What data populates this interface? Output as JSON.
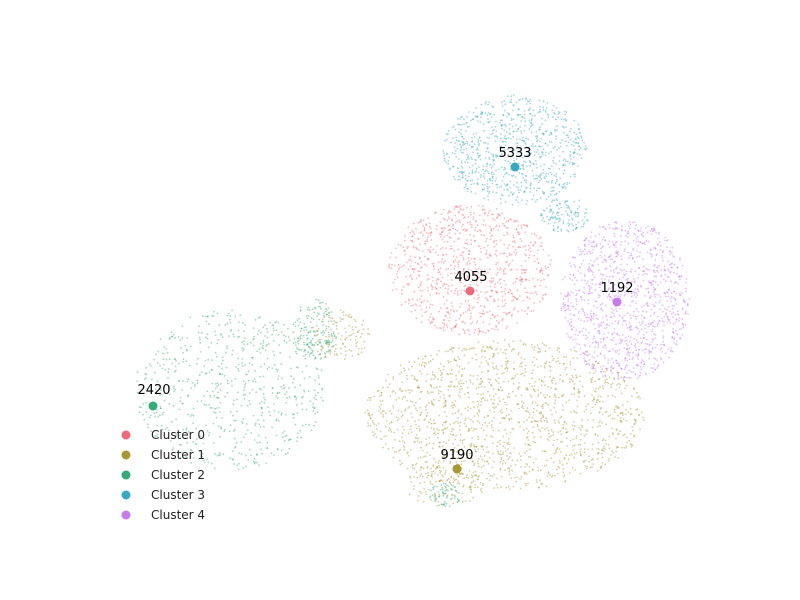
{
  "chart_data": {
    "type": "scatter",
    "title": "",
    "xlabel": "",
    "ylabel": "",
    "axes_visible": false,
    "grid": false,
    "legend_position": "bottom-left",
    "series": [
      {
        "name": "Cluster 0",
        "color": "#ea6b7c",
        "centroid_label": "4055"
      },
      {
        "name": "Cluster 1",
        "color": "#a89735",
        "centroid_label": "9190"
      },
      {
        "name": "Cluster 2",
        "color": "#36ab78",
        "centroid_label": "2420"
      },
      {
        "name": "Cluster 3",
        "color": "#39a8c0",
        "centroid_label": "5333"
      },
      {
        "name": "Cluster 4",
        "color": "#c67bea",
        "centroid_label": "1192"
      }
    ]
  }
}
